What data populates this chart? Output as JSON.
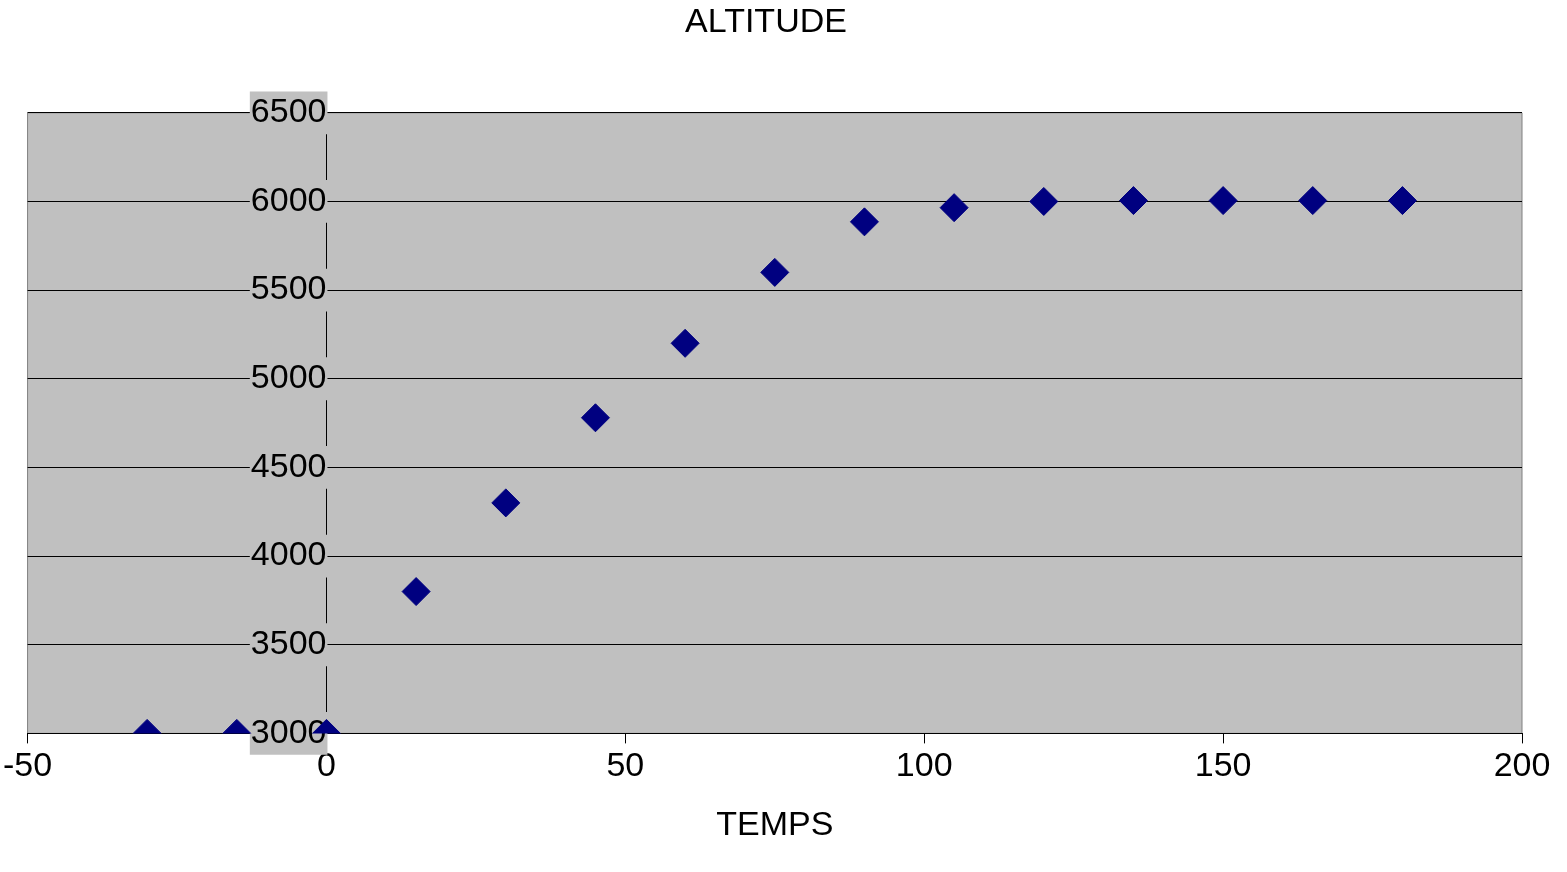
{
  "chart_data": {
    "type": "scatter",
    "title": "ALTITUDE",
    "xlabel": "TEMPS",
    "x": [
      -30,
      -15,
      0,
      15,
      30,
      45,
      60,
      75,
      90,
      105,
      120,
      135,
      150,
      165,
      180
    ],
    "series": [
      {
        "color": "#000080",
        "values": [
          3000,
          3000,
          3000,
          3800,
          4300,
          4780,
          5200,
          5600,
          5885,
          5965,
          6000,
          6005,
          6005,
          6005,
          6005
        ]
      }
    ],
    "xlim": [
      -50,
      200
    ],
    "xticks": [
      -50,
      0,
      50,
      100,
      150,
      200
    ],
    "ylim": [
      3000,
      6500
    ],
    "yticks": [
      3000,
      3500,
      4000,
      4500,
      5000,
      5500,
      6000,
      6500
    ],
    "grid": "y",
    "legend": false,
    "marker": "diamond"
  }
}
